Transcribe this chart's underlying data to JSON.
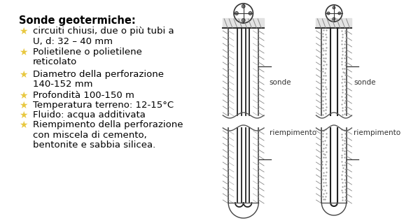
{
  "title": "Sonde geotermiche",
  "bullet_items": [
    [
      "circuiti chiusi, due o più tubi a",
      "U, d: 32 – 40 mm"
    ],
    [
      "Polietilene o polietilene",
      "reticolato"
    ],
    [
      "Diametro della perforazione",
      "140-152 mm"
    ],
    [
      "Profondità 100-150 m"
    ],
    [
      "Temperatura terreno: 12-15°C"
    ],
    [
      "Fluido: acqua additivata"
    ],
    [
      "Riempimento della perforazione",
      "con miscela di cemento,",
      "bentonite e sabbia silicea."
    ]
  ],
  "star_color": "#E8C840",
  "bg_color": "#ffffff",
  "text_color": "#000000",
  "label_sonde": "sonde",
  "label_riempimento": "riempimento",
  "title_fontsize": 10.5,
  "body_fontsize": 9.5
}
